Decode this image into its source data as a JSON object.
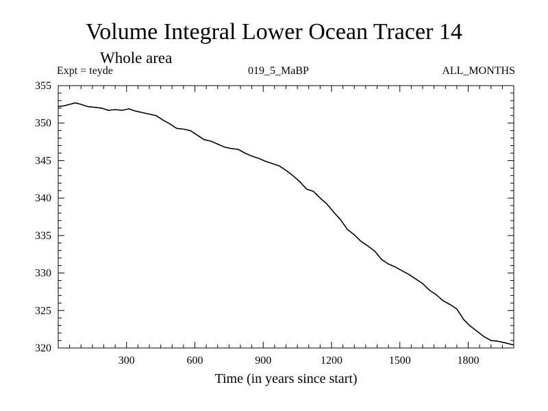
{
  "header": {
    "title": "Volume Integral Lower Ocean Tracer 14",
    "subtitle": "Whole area",
    "expt": "Expt = teyde",
    "run_id": "019_5_MaBP",
    "months": "ALL_MONTHS"
  },
  "chart_data": {
    "type": "line",
    "title": "Volume Integral Lower Ocean Tracer 14",
    "subtitle": "Whole area",
    "xlabel": "Time (in years since start)",
    "ylabel": "",
    "xlim": [
      0,
      2000
    ],
    "ylim": [
      320,
      355
    ],
    "x_ticks": [
      300,
      600,
      900,
      1200,
      1500,
      1800
    ],
    "y_ticks": [
      320,
      325,
      330,
      335,
      340,
      345,
      350,
      355
    ],
    "grid": false,
    "series": [
      {
        "name": "Lower Ocean Tracer 14",
        "color": "#000000",
        "x": [
          0,
          25,
          50,
          75,
          100,
          130,
          160,
          190,
          220,
          250,
          280,
          310,
          340,
          370,
          400,
          430,
          460,
          490,
          520,
          550,
          580,
          610,
          640,
          670,
          700,
          730,
          760,
          790,
          820,
          850,
          880,
          910,
          940,
          970,
          1000,
          1030,
          1060,
          1090,
          1120,
          1150,
          1180,
          1210,
          1240,
          1270,
          1300,
          1330,
          1360,
          1390,
          1420,
          1450,
          1480,
          1510,
          1540,
          1570,
          1600,
          1630,
          1660,
          1690,
          1720,
          1750,
          1780,
          1810,
          1840,
          1870,
          1900,
          1930,
          1960,
          2000
        ],
        "values": [
          352.2,
          352.3,
          352.5,
          352.7,
          352.5,
          352.2,
          352.1,
          352.0,
          351.7,
          351.8,
          351.7,
          351.9,
          351.6,
          351.4,
          351.2,
          351.0,
          350.4,
          349.9,
          349.3,
          349.2,
          349.0,
          348.4,
          347.8,
          347.6,
          347.2,
          346.8,
          346.6,
          346.5,
          346.0,
          345.6,
          345.3,
          344.9,
          344.6,
          344.3,
          343.7,
          343.0,
          342.2,
          341.2,
          340.9,
          340.0,
          339.2,
          338.1,
          337.1,
          335.8,
          335.1,
          334.2,
          333.6,
          332.9,
          331.8,
          331.2,
          330.8,
          330.3,
          329.8,
          329.2,
          328.6,
          327.7,
          327.1,
          326.3,
          325.8,
          325.2,
          323.8,
          322.9,
          322.2,
          321.5,
          321.0,
          320.9,
          320.7,
          320.4
        ]
      }
    ]
  }
}
